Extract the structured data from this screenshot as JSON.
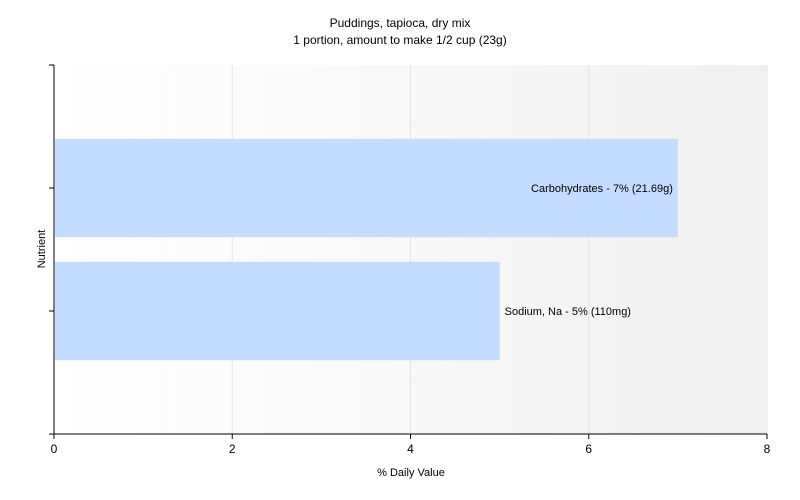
{
  "chart_data": {
    "type": "bar",
    "orientation": "horizontal",
    "title": "Puddings, tapioca, dry mix",
    "subtitle": "1 portion, amount to make 1/2 cup (23g)",
    "xlabel": "% Daily Value",
    "ylabel": "Nutrient",
    "xlim": [
      0,
      8
    ],
    "xticks": [
      "0",
      "2",
      "4",
      "6",
      "8"
    ],
    "grid": true,
    "categories": [
      "Carbohydrates",
      "Sodium, Na"
    ],
    "values": [
      7,
      5
    ],
    "labels": [
      "Carbohydrates - 7% (21.69g)",
      "Sodium, Na - 5% (110mg)"
    ],
    "bar_color": "#c3dcff"
  }
}
